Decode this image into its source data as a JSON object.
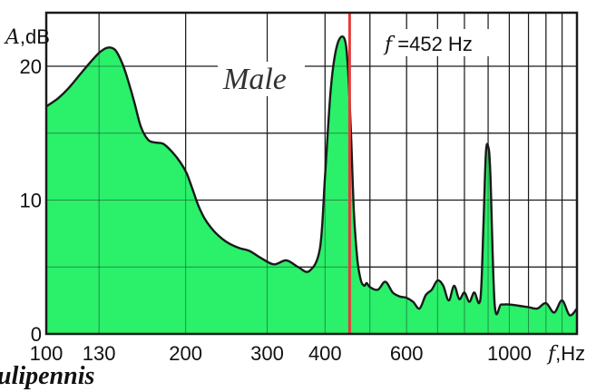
{
  "chart_data": {
    "type": "area",
    "title": "",
    "series_label": "Male",
    "annotation": {
      "symbol": "f",
      "text": " =452 Hz",
      "x": 452
    },
    "species_fragment": "ulipennis",
    "xaxis": {
      "scale": "log",
      "xlim": [
        100,
        1400
      ],
      "unit_symbol": "f",
      "unit_text": ",Hz",
      "ticks": [
        {
          "value": 100,
          "label": "100"
        },
        {
          "value": 130,
          "label": "130"
        },
        {
          "value": 200,
          "label": "200"
        },
        {
          "value": 300,
          "label": "300"
        },
        {
          "value": 400,
          "label": "400"
        },
        {
          "value": 600,
          "label": "600"
        },
        {
          "value": 1000,
          "label": "1000"
        }
      ],
      "gridlines": [
        100,
        130,
        200,
        300,
        400,
        500,
        600,
        700,
        800,
        900,
        1000,
        1100,
        1200,
        1300
      ]
    },
    "yaxis": {
      "ylim": [
        0,
        24
      ],
      "unit_symbol": "A",
      "unit_text": ",dB",
      "ticks": [
        {
          "value": 0,
          "label": "0"
        },
        {
          "value": 10,
          "label": "10"
        },
        {
          "value": 20,
          "label": "20"
        }
      ],
      "gridlines": [
        5,
        10,
        15,
        20
      ]
    },
    "colors": {
      "fill": "#2af06a",
      "line": "#1a1a1a",
      "marker": "#e83a3a",
      "grid": "#1a1a1a"
    },
    "x": [
      100,
      106,
      112,
      119,
      126,
      131,
      136,
      141,
      146,
      150,
      155,
      160,
      166,
      172,
      179,
      187,
      195,
      201,
      207,
      213,
      220,
      230,
      240,
      250,
      262,
      275,
      290,
      310,
      330,
      350,
      370,
      390,
      400,
      412,
      425,
      440,
      448,
      455,
      462,
      470,
      478,
      486,
      492,
      500,
      520,
      540,
      560,
      580,
      600,
      620,
      640,
      660,
      680,
      700,
      720,
      740,
      760,
      780,
      800,
      820,
      840,
      860,
      870,
      880,
      890,
      900,
      910,
      930,
      960,
      1000,
      1050,
      1100,
      1150,
      1200,
      1250,
      1300,
      1350,
      1400
    ],
    "y": [
      17,
      17.6,
      18.4,
      19.5,
      20.5,
      21.1,
      21.4,
      21.2,
      20.2,
      19,
      17.3,
      15.5,
      14.5,
      14.3,
      14.2,
      13.6,
      12.8,
      12,
      10.8,
      9.6,
      8.6,
      7.7,
      7.1,
      6.7,
      6.4,
      6.2,
      5.7,
      5.2,
      5.5,
      5,
      4.7,
      6.4,
      11.8,
      18.5,
      21.6,
      22.1,
      20,
      15,
      9,
      5.5,
      4,
      3.6,
      3.8,
      3.5,
      3.3,
      3.9,
      3.1,
      2.8,
      2.7,
      2.4,
      1.9,
      2.9,
      3.3,
      4,
      3.6,
      2.5,
      3.6,
      2.6,
      3.1,
      2.4,
      3.1,
      2.3,
      3.5,
      8.5,
      13.5,
      14,
      12,
      2.2,
      2.2,
      2.2,
      2.1,
      2,
      1.9,
      2.3,
      1.6,
      2.5,
      1.4,
      1.9
    ]
  }
}
